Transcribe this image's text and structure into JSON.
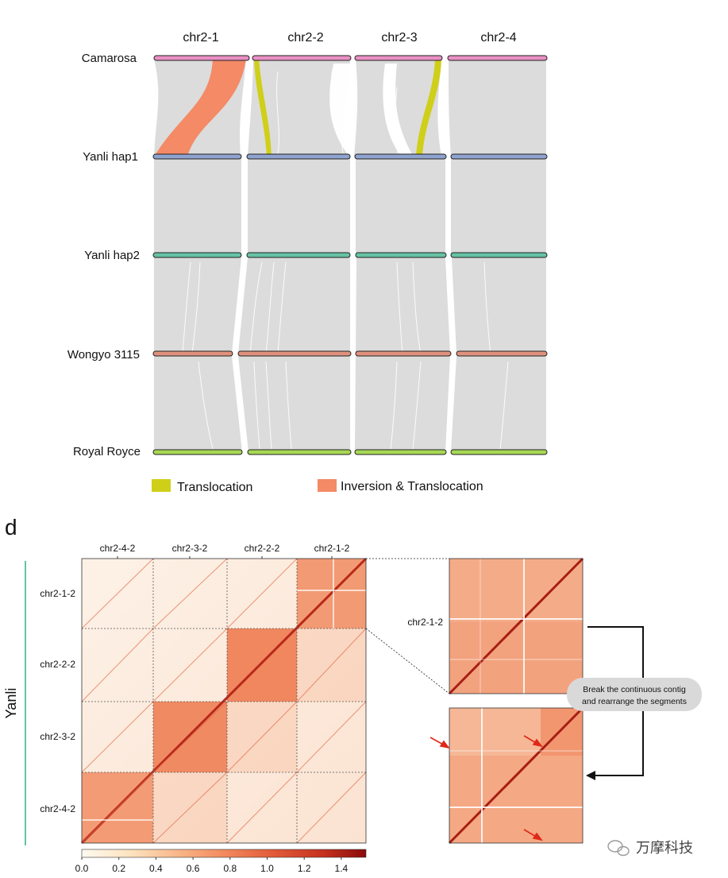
{
  "synteny": {
    "columns": [
      "chr2-1",
      "chr2-2",
      "chr2-3",
      "chr2-4"
    ],
    "genomes": [
      {
        "name": "Camarosa",
        "color": "#e98fc3"
      },
      {
        "name": "Yanli hap1",
        "color": "#8ea3cf"
      },
      {
        "name": "Yanli hap2",
        "color": "#66c2a5"
      },
      {
        "name": "Wongyo 3115",
        "color": "#e0917e"
      },
      {
        "name": "Royal Royce",
        "color": "#a6d854"
      }
    ],
    "legend": [
      {
        "label": "Translocation",
        "color": "#cfcf1a"
      },
      {
        "label": "Inversion & Translocation",
        "color": "#f48a66"
      }
    ]
  },
  "hic": {
    "panel_letter": "d",
    "sample_label": "Yanli",
    "top_labels": [
      "chr2-4-2",
      "chr2-3-2",
      "chr2-2-2",
      "chr2-1-2"
    ],
    "left_labels": [
      "chr2-1-2",
      "chr2-2-2",
      "chr2-3-2",
      "chr2-4-2"
    ],
    "zoom_label": "chr2-1-2",
    "annotation_line1": "Break the continuous contig",
    "annotation_line2": "and rearrange the segments",
    "colorbar_ticks": [
      "0.0",
      "0.2",
      "0.4",
      "0.6",
      "0.8",
      "1.0",
      "1.2",
      "1.4"
    ],
    "colorbar_stops": [
      "#fffaf0",
      "#fde3c0",
      "#f9b88b",
      "#f28a5e",
      "#e25c3a",
      "#c5321f",
      "#8b0a0a"
    ]
  },
  "watermark": "万摩科技"
}
